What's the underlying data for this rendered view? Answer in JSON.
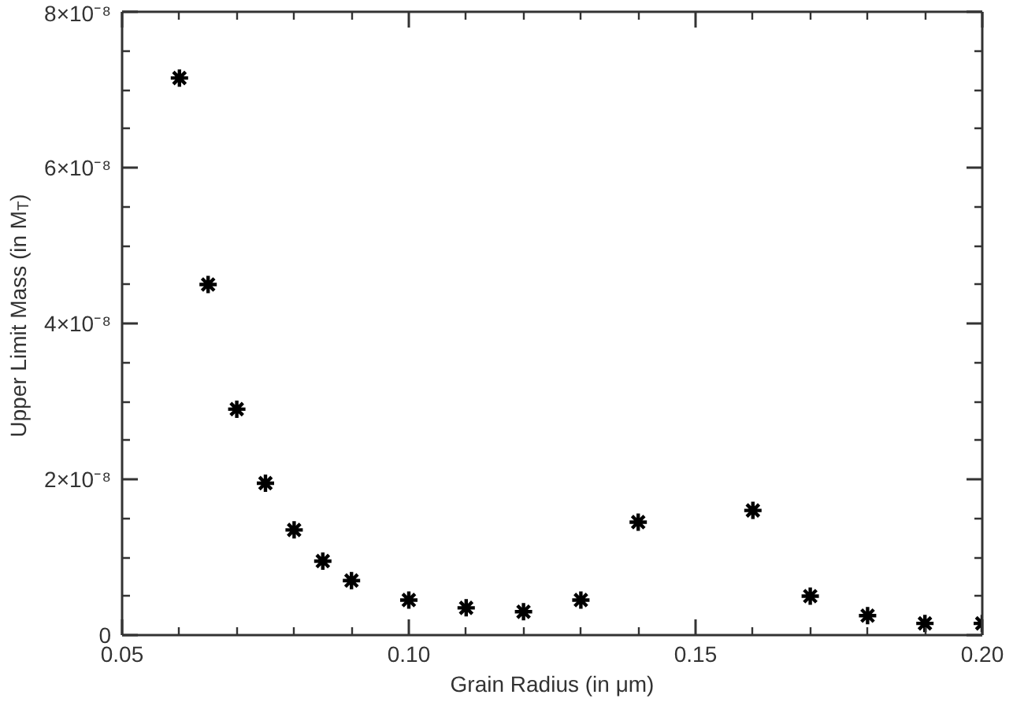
{
  "chart_data": {
    "type": "scatter",
    "xlabel": "Grain Radius (in μm)",
    "ylabel": "Upper Limit Mass (in M$_{T}$)",
    "x": [
      0.06,
      0.065,
      0.07,
      0.075,
      0.08,
      0.085,
      0.09,
      0.1,
      0.11,
      0.12,
      0.13,
      0.14,
      0.16,
      0.17,
      0.18,
      0.19,
      0.2
    ],
    "values": [
      7.15e-08,
      4.5e-08,
      2.9e-08,
      1.95e-08,
      1.35e-08,
      9.5e-09,
      7e-09,
      4.5e-09,
      3.5e-09,
      3e-09,
      4.5e-09,
      1.45e-08,
      1.6e-08,
      5e-09,
      2.5e-09,
      1.5e-09,
      1.5e-09
    ],
    "color": "#000000",
    "marker": "cross",
    "xlim": [
      0.05,
      0.2
    ],
    "xticks": [
      0.05,
      {
        "value": 0.1,
        "label": "0.10"
      },
      0.15,
      {
        "value": 0.2,
        "label": "0.20"
      }
    ],
    "ylim": [
      0,
      8e-08
    ],
    "yticks": [
      0,
      {
        "value": 2e-08,
        "label": "2×10⁻⁸"
      },
      {
        "value": 4e-08,
        "label": "4×10⁻⁸"
      },
      {
        "value": 6e-08,
        "label": "6×10⁻⁸"
      },
      {
        "value": 8e-08,
        "label": "8×10⁻⁸"
      }
    ]
  }
}
